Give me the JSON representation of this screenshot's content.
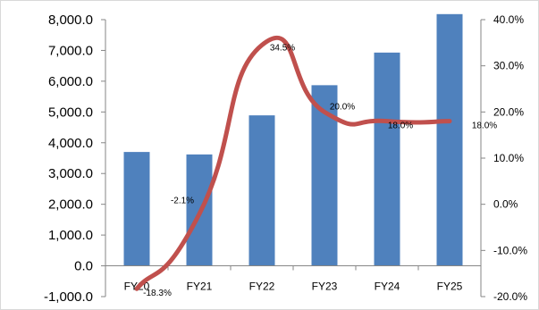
{
  "chart_data": {
    "type": "bar",
    "categories": [
      "FY20",
      "FY21",
      "FY22",
      "FY23",
      "FY24",
      "FY25"
    ],
    "series": [
      {
        "type": "bar",
        "axis": "left",
        "color": "#4F81BD",
        "values": [
          3700,
          3620,
          4890,
          5870,
          6930,
          8180
        ]
      },
      {
        "type": "line",
        "axis": "right",
        "color": "#C0504D",
        "smooth": true,
        "values": [
          -18.3,
          -2.1,
          34.5,
          20.0,
          18.0,
          18.0
        ],
        "labels": [
          "-18.3%",
          "-2.1%",
          "34.5%",
          "20.0%",
          "18.0%",
          "18.0%"
        ]
      }
    ],
    "y_left": {
      "range": [
        -1000,
        8000
      ],
      "ticks": [
        -1000,
        0,
        1000,
        2000,
        3000,
        4000,
        5000,
        6000,
        7000,
        8000
      ],
      "tick_labels": [
        "-1,000.0",
        "0.0",
        "1,000.0",
        "2,000.0",
        "3,000.0",
        "4,000.0",
        "5,000.0",
        "6,000.0",
        "7,000.0",
        "8,000.0"
      ]
    },
    "y_right": {
      "range": [
        -20,
        40
      ],
      "ticks": [
        -20,
        -10,
        0,
        10,
        20,
        30,
        40
      ],
      "tick_labels": [
        "-20.0%",
        "-10.0%",
        "0.0%",
        "10.0%",
        "20.0%",
        "30.0%",
        "40.0%"
      ]
    },
    "title": "",
    "xlabel": "",
    "ylabel": "",
    "grid": false,
    "legend": "none"
  }
}
